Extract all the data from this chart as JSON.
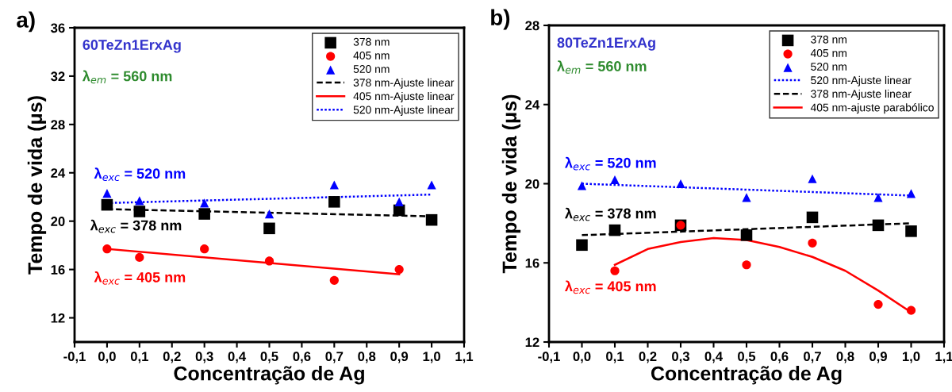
{
  "chart_data": [
    {
      "type": "scatter",
      "title": "a)",
      "xlabel": "Concentração de Ag",
      "ylabel": "Tempo de vida (μs)",
      "xlim": [
        -0.1,
        1.1
      ],
      "xticks": [
        {
          "value": -0.1,
          "label": "-0,1"
        },
        {
          "value": 0,
          "label": "0,0"
        },
        {
          "value": 0.1,
          "label": "0,1"
        },
        {
          "value": 0.2,
          "label": "0,2"
        },
        {
          "value": 0.3,
          "label": "0,3"
        },
        {
          "value": 0.4,
          "label": "0,4"
        },
        {
          "value": 0.5,
          "label": "0,5"
        },
        {
          "value": 0.6,
          "label": "0,6"
        },
        {
          "value": 0.7,
          "label": "0,7"
        },
        {
          "value": 0.8,
          "label": "0,8"
        },
        {
          "value": 0.9,
          "label": "0,9"
        },
        {
          "value": 1.0,
          "label": "1,0"
        },
        {
          "value": 1.1,
          "label": "1,1"
        }
      ],
      "ylim": [
        10,
        36
      ],
      "yticks": [
        12,
        16,
        20,
        24,
        28,
        32,
        36
      ],
      "grid": false,
      "legend": "top right",
      "x": [
        0,
        0.1,
        0.3,
        0.5,
        0.7,
        0.9,
        1.0
      ],
      "series": [
        {
          "name": "378 nm",
          "marker": "square",
          "color": "#000000",
          "values": [
            21.35,
            20.8,
            20.6,
            19.4,
            21.6,
            20.9,
            20.1
          ]
        },
        {
          "name": "405 nm",
          "marker": "circle",
          "color": "#ff0000",
          "values": [
            17.7,
            17.0,
            17.7,
            16.7,
            15.1,
            16.0,
            null
          ]
        },
        {
          "name": "520 nm",
          "marker": "triangle",
          "color": "#0000ff",
          "values": [
            22.3,
            21.7,
            21.5,
            20.6,
            23.0,
            21.6,
            23.0
          ]
        },
        {
          "name": "378 nm-Ajuste linear",
          "type": "line",
          "line_style": "dashed",
          "color": "#000000",
          "x": [
            0,
            1.0
          ],
          "values": [
            21.0,
            20.4
          ]
        },
        {
          "name": "405 nm-Ajuste linear",
          "type": "line",
          "line_style": "solid",
          "color": "#ff0000",
          "x": [
            0,
            0.9
          ],
          "values": [
            17.7,
            15.6
          ]
        },
        {
          "name": "520 nm-Ajuste linear",
          "type": "line",
          "line_style": "dotted",
          "color": "#0000ff",
          "x": [
            0,
            1.0
          ],
          "values": [
            21.5,
            22.2
          ]
        }
      ],
      "annotations": [
        "60TeZn1ErxAg",
        "λ$_{em}$ = 560 nm",
        "λ$_{exc}$ = 520 nm",
        "λ$_{exc}$ = 378 nm",
        "λ$_{exc}$ = 405 nm"
      ]
    },
    {
      "type": "scatter",
      "title": "b)",
      "xlabel": "Concentração de Ag",
      "ylabel": "Tempo de vida (μs)",
      "xlim": [
        -0.1,
        1.1
      ],
      "xticks": [
        {
          "value": -0.1,
          "label": "-0,1"
        },
        {
          "value": 0,
          "label": "0,0"
        },
        {
          "value": 0.1,
          "label": "0,1"
        },
        {
          "value": 0.2,
          "label": "0,2"
        },
        {
          "value": 0.3,
          "label": "0,3"
        },
        {
          "value": 0.4,
          "label": "0,4"
        },
        {
          "value": 0.5,
          "label": "0,5"
        },
        {
          "value": 0.6,
          "label": "0,6"
        },
        {
          "value": 0.7,
          "label": "0,7"
        },
        {
          "value": 0.8,
          "label": "0,8"
        },
        {
          "value": 0.9,
          "label": "0,9"
        },
        {
          "value": 1.0,
          "label": "1,0"
        },
        {
          "value": 1.1,
          "label": "1,1"
        }
      ],
      "ylim": [
        12,
        28
      ],
      "yticks": [
        12,
        16,
        20,
        24,
        28
      ],
      "grid": false,
      "legend": "top right",
      "x": [
        0,
        0.1,
        0.3,
        0.5,
        0.7,
        0.9,
        1.0
      ],
      "series": [
        {
          "name": "378 nm",
          "marker": "square",
          "color": "#000000",
          "values": [
            16.9,
            17.65,
            17.9,
            17.4,
            18.3,
            17.9,
            17.6
          ]
        },
        {
          "name": "405 nm",
          "marker": "circle",
          "color": "#ff0000",
          "values": [
            null,
            15.6,
            17.9,
            15.9,
            17.0,
            13.9,
            13.6
          ]
        },
        {
          "name": "520 nm",
          "marker": "triangle",
          "color": "#0000ff",
          "values": [
            19.9,
            20.2,
            20.0,
            19.3,
            20.25,
            19.3,
            19.5
          ]
        },
        {
          "name": "520 nm-Ajuste linear",
          "type": "line",
          "line_style": "dotted",
          "color": "#0000ff",
          "x": [
            0,
            1.0
          ],
          "values": [
            20.0,
            19.4
          ]
        },
        {
          "name": "378 nm-Ajuste linear",
          "type": "line",
          "line_style": "dashed",
          "color": "#000000",
          "x": [
            0,
            1.0
          ],
          "values": [
            17.4,
            18.0
          ]
        },
        {
          "name": "405 nm-ajuste parabólico",
          "type": "line",
          "line_style": "solid",
          "color": "#ff0000",
          "x": [
            0.1,
            0.2,
            0.3,
            0.4,
            0.5,
            0.6,
            0.7,
            0.8,
            0.9,
            1.0
          ],
          "values": [
            15.9,
            16.7,
            17.05,
            17.25,
            17.15,
            16.8,
            16.3,
            15.6,
            14.6,
            13.5
          ]
        }
      ],
      "annotations": [
        "80TeZn1ErxAg",
        "λ$_{em}$ = 560 nm",
        "λ$_{exc}$ = 520 nm",
        "λ$_{exc}$ = 378 nm",
        "λ$_{exc}$ = 405 nm"
      ]
    }
  ]
}
